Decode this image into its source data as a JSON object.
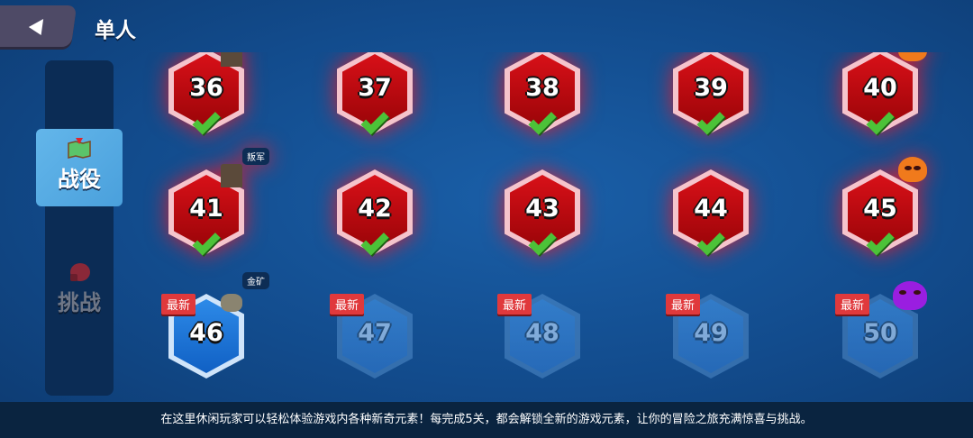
{
  "header": {
    "title": "单人",
    "back_icon": "back-arrow-icon"
  },
  "sidebar": {
    "tabs": [
      {
        "label": "战役",
        "icon": "map-icon",
        "active": true
      },
      {
        "label": "挑战",
        "icon": "boxing-glove-icon",
        "active": false
      }
    ]
  },
  "levels": [
    {
      "num": "36",
      "state": "completed",
      "icon": "building"
    },
    {
      "num": "37",
      "state": "completed"
    },
    {
      "num": "38",
      "state": "completed"
    },
    {
      "num": "39",
      "state": "completed"
    },
    {
      "num": "40",
      "state": "completed",
      "icon": "orange-skull"
    },
    {
      "num": "41",
      "state": "completed",
      "icon": "building",
      "tag": "叛军"
    },
    {
      "num": "42",
      "state": "completed"
    },
    {
      "num": "43",
      "state": "completed"
    },
    {
      "num": "44",
      "state": "completed"
    },
    {
      "num": "45",
      "state": "completed",
      "icon": "orange-skull"
    },
    {
      "num": "46",
      "state": "current",
      "badge": "最新",
      "icon": "mine",
      "tag": "金矿"
    },
    {
      "num": "47",
      "state": "locked",
      "badge": "最新"
    },
    {
      "num": "48",
      "state": "locked",
      "badge": "最新"
    },
    {
      "num": "49",
      "state": "locked",
      "badge": "最新"
    },
    {
      "num": "50",
      "state": "locked",
      "badge": "最新",
      "icon": "purple-skull"
    }
  ],
  "footer": {
    "text": "在这里休闲玩家可以轻松体验游戏内各种新奇元素！每完成5关，都会解锁全新的游戏元素，让你的冒险之旅充满惊喜与挑战。"
  }
}
